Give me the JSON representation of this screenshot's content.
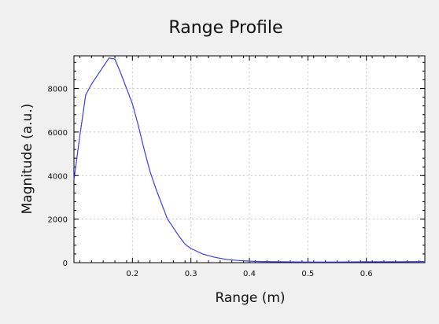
{
  "chart_data": {
    "type": "line",
    "title": "Range Profile",
    "xlabel": "Range (m)",
    "ylabel": "Magnitude (a.u.)",
    "xlim": [
      0.1,
      0.7
    ],
    "ylim": [
      0,
      9500
    ],
    "x_ticks": [
      0.2,
      0.3,
      0.4,
      0.5,
      0.6
    ],
    "x_tick_labels": [
      "0.2",
      "0.3",
      "0.4",
      "0.5",
      "0.6"
    ],
    "y_ticks": [
      0,
      2000,
      4000,
      6000,
      8000
    ],
    "y_tick_labels": [
      "0",
      "2000",
      "4000",
      "6000",
      "8000"
    ],
    "grid": true,
    "line_color": "#3b3bf0",
    "series": [
      {
        "x": [
          0.1,
          0.11,
          0.12,
          0.13,
          0.14,
          0.15,
          0.16,
          0.17,
          0.18,
          0.19,
          0.2,
          0.21,
          0.22,
          0.23,
          0.24,
          0.25,
          0.26,
          0.27,
          0.28,
          0.29,
          0.3,
          0.32,
          0.34,
          0.36,
          0.38,
          0.4,
          0.42,
          0.45,
          0.5,
          0.55,
          0.6,
          0.65,
          0.7
        ],
        "y": [
          3800,
          5800,
          7700,
          8200,
          8600,
          9000,
          9400,
          9350,
          8700,
          8000,
          7300,
          6300,
          5200,
          4200,
          3400,
          2700,
          2000,
          1600,
          1200,
          850,
          650,
          400,
          250,
          150,
          100,
          70,
          50,
          40,
          30,
          30,
          40,
          40,
          50
        ]
      }
    ]
  }
}
